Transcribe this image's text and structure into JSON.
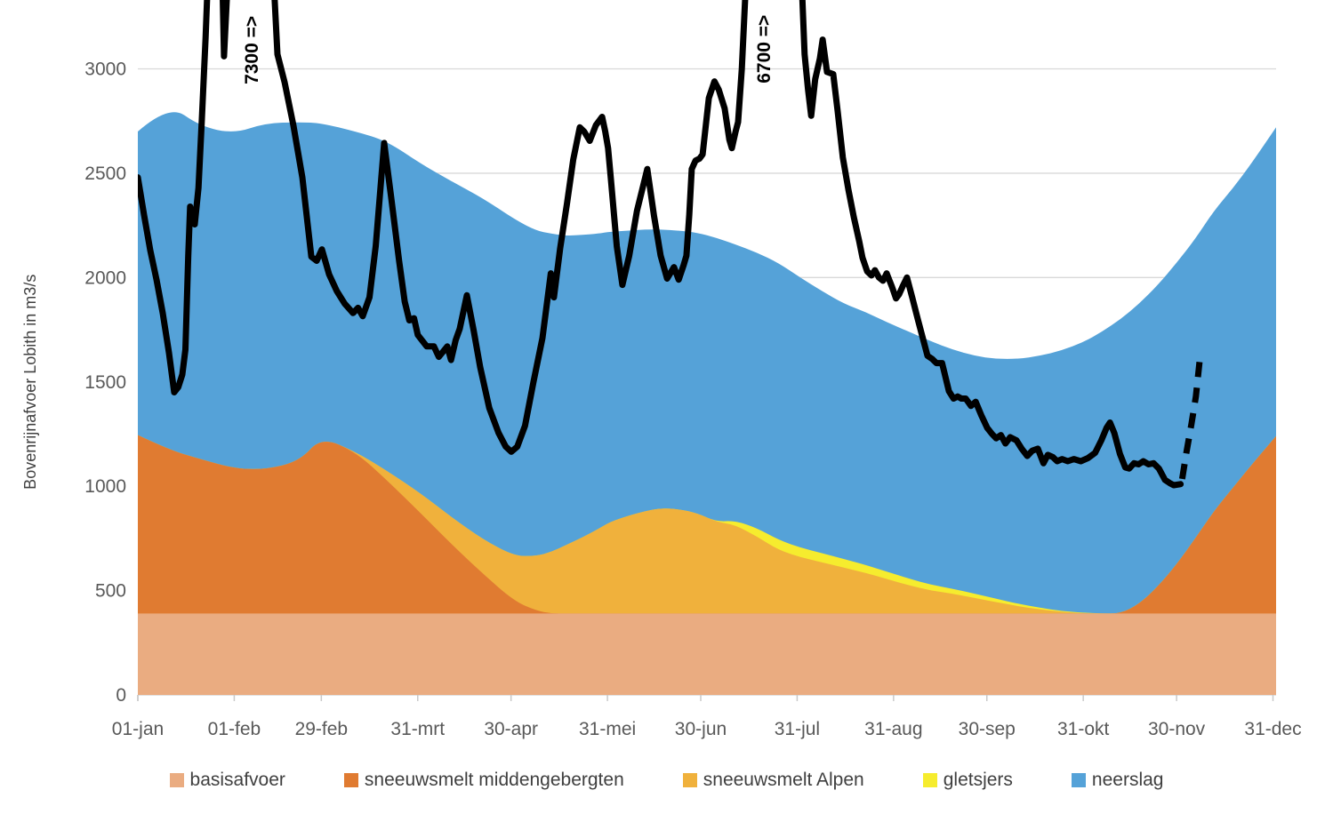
{
  "chart_data": {
    "type": "area",
    "title": "",
    "ylabel": "Bovenrijnafvoer Lobith in m3/s",
    "grid": "horizontal",
    "y_ticks": [
      0,
      500,
      1000,
      1500,
      2000,
      2500,
      3000
    ],
    "y_max_visible": 3330,
    "x_tick_labels": [
      {
        "label": "01-jan",
        "day": 0
      },
      {
        "label": "01-feb",
        "day": 31
      },
      {
        "label": "29-feb",
        "day": 59
      },
      {
        "label": "31-mrt",
        "day": 90
      },
      {
        "label": "30-apr",
        "day": 120
      },
      {
        "label": "31-mei",
        "day": 151
      },
      {
        "label": "30-jun",
        "day": 181
      },
      {
        "label": "31-jul",
        "day": 212
      },
      {
        "label": "31-aug",
        "day": 243
      },
      {
        "label": "30-sep",
        "day": 273
      },
      {
        "label": "31-okt",
        "day": 304
      },
      {
        "label": "30-nov",
        "day": 334
      },
      {
        "label": "31-dec",
        "day": 365
      }
    ],
    "days": [
      0,
      10,
      20,
      31,
      41,
      52,
      59,
      70,
      80,
      91,
      101,
      111,
      121,
      128,
      133,
      138,
      143,
      148,
      152,
      158,
      163,
      168,
      174,
      180,
      186,
      192,
      199,
      206,
      213,
      220,
      227,
      234,
      241,
      248,
      255,
      262,
      269,
      276,
      283,
      290,
      297,
      304,
      310,
      316,
      322,
      328,
      334,
      340,
      346,
      352,
      358,
      366
    ],
    "stacked_series": [
      {
        "name": "basisafvoer",
        "color": "#EAAC81",
        "constant": 390
      },
      {
        "name": "sneeuwsmelt middengebergten",
        "color": "#E07B31",
        "values": [
          855,
          785,
          740,
          695,
          690,
          730,
          845,
          775,
          640,
          480,
          330,
          190,
          60,
          15,
          0,
          0,
          0,
          0,
          0,
          0,
          0,
          0,
          0,
          0,
          0,
          0,
          0,
          0,
          0,
          0,
          0,
          0,
          0,
          0,
          0,
          0,
          0,
          0,
          0,
          0,
          0,
          0,
          0,
          0,
          45,
          130,
          235,
          360,
          490,
          600,
          710,
          850
        ]
      },
      {
        "name": "sneeuwsmelt Alpen",
        "color": "#F0B13C",
        "values": [
          0,
          0,
          0,
          0,
          0,
          0,
          0,
          0,
          45,
          95,
          130,
          165,
          215,
          260,
          295,
          330,
          365,
          405,
          440,
          470,
          490,
          505,
          500,
          480,
          440,
          425,
          370,
          305,
          270,
          245,
          220,
          195,
          165,
          135,
          110,
          95,
          75,
          55,
          35,
          20,
          8,
          2,
          0,
          0,
          0,
          0,
          0,
          0,
          0,
          0,
          0,
          0
        ]
      },
      {
        "name": "gletsjers",
        "color": "#F6EC2E",
        "values": [
          0,
          0,
          0,
          0,
          0,
          0,
          0,
          0,
          0,
          0,
          0,
          0,
          0,
          0,
          0,
          0,
          0,
          0,
          0,
          0,
          0,
          0,
          0,
          0,
          0,
          20,
          40,
          48,
          46,
          44,
          41,
          38,
          35,
          32,
          28,
          24,
          20,
          16,
          12,
          8,
          4,
          2,
          0,
          0,
          0,
          0,
          0,
          0,
          0,
          0,
          0,
          0
        ]
      },
      {
        "name": "neerslag",
        "color": "#55A2D8",
        "values": [
          1455,
          1655,
          1595,
          1605,
          1660,
          1625,
          1505,
          1535,
          1580,
          1580,
          1610,
          1635,
          1615,
          1560,
          1525,
          1480,
          1450,
          1415,
          1390,
          1365,
          1350,
          1335,
          1335,
          1345,
          1360,
          1325,
          1320,
          1327,
          1294,
          1256,
          1224,
          1212,
          1195,
          1183,
          1167,
          1146,
          1140,
          1149,
          1173,
          1207,
          1248,
          1296,
          1350,
          1410,
          1440,
          1445,
          1445,
          1435,
          1440,
          1435,
          1445,
          1480
        ]
      }
    ],
    "observed_line": {
      "name": "afvoer Lobith",
      "color": "#000000",
      "points": [
        [
          0,
          2480
        ],
        [
          2,
          2300
        ],
        [
          4,
          2130
        ],
        [
          6,
          1990
        ],
        [
          8,
          1830
        ],
        [
          10,
          1640
        ],
        [
          11.7,
          1450
        ],
        [
          13,
          1475
        ],
        [
          14.3,
          1535
        ],
        [
          15.3,
          1655
        ],
        [
          16.2,
          2105
        ],
        [
          16.8,
          2340
        ],
        [
          18.3,
          2255
        ],
        [
          19.5,
          2430
        ],
        [
          20.6,
          2760
        ],
        [
          21.8,
          3150
        ],
        [
          23,
          3620
        ],
        [
          26.9,
          3620
        ],
        [
          27.7,
          3060
        ],
        [
          28.6,
          3330
        ],
        [
          29.6,
          3620
        ],
        [
          43,
          3620
        ],
        [
          44.9,
          3070
        ],
        [
          47.2,
          2935
        ],
        [
          50,
          2730
        ],
        [
          52.9,
          2480
        ],
        [
          55.8,
          2100
        ],
        [
          57.5,
          2080
        ],
        [
          59.2,
          2135
        ],
        [
          61.5,
          2015
        ],
        [
          64,
          1935
        ],
        [
          66.5,
          1875
        ],
        [
          69.2,
          1830
        ],
        [
          70.8,
          1855
        ],
        [
          72.3,
          1815
        ],
        [
          74.5,
          1905
        ],
        [
          76.5,
          2150
        ],
        [
          79.2,
          2645
        ],
        [
          81.5,
          2380
        ],
        [
          84,
          2080
        ],
        [
          85.8,
          1885
        ],
        [
          87.3,
          1795
        ],
        [
          88.8,
          1805
        ],
        [
          90,
          1725
        ],
        [
          92.9,
          1670
        ],
        [
          95.2,
          1670
        ],
        [
          96.8,
          1620
        ],
        [
          99.5,
          1670
        ],
        [
          100.7,
          1605
        ],
        [
          102.2,
          1700
        ],
        [
          103.5,
          1755
        ],
        [
          105.8,
          1915
        ],
        [
          108,
          1745
        ],
        [
          110.1,
          1570
        ],
        [
          113,
          1375
        ],
        [
          116,
          1255
        ],
        [
          118.3,
          1190
        ],
        [
          120.1,
          1165
        ],
        [
          122,
          1190
        ],
        [
          124.5,
          1290
        ],
        [
          127.2,
          1500
        ],
        [
          130.1,
          1710
        ],
        [
          132.8,
          2020
        ],
        [
          133.8,
          1905
        ],
        [
          135.8,
          2140
        ],
        [
          138,
          2355
        ],
        [
          140,
          2565
        ],
        [
          142.1,
          2720
        ],
        [
          143.5,
          2700
        ],
        [
          145.3,
          2655
        ],
        [
          147.3,
          2730
        ],
        [
          149.3,
          2770
        ],
        [
          150.3,
          2700
        ],
        [
          151.2,
          2620
        ],
        [
          152.1,
          2475
        ],
        [
          154,
          2150
        ],
        [
          155.8,
          1965
        ],
        [
          158,
          2105
        ],
        [
          160.5,
          2320
        ],
        [
          163.8,
          2520
        ],
        [
          166,
          2295
        ],
        [
          168.1,
          2105
        ],
        [
          170.2,
          1995
        ],
        [
          172.4,
          2050
        ],
        [
          173.9,
          1990
        ],
        [
          175.5,
          2060
        ],
        [
          176.4,
          2105
        ],
        [
          177.3,
          2300
        ],
        [
          178.1,
          2520
        ],
        [
          179.3,
          2560
        ],
        [
          180.6,
          2570
        ],
        [
          181.6,
          2590
        ],
        [
          183.6,
          2860
        ],
        [
          185.4,
          2940
        ],
        [
          186.8,
          2900
        ],
        [
          188.7,
          2810
        ],
        [
          190.2,
          2660
        ],
        [
          191,
          2620
        ],
        [
          192.2,
          2700
        ],
        [
          193,
          2745
        ],
        [
          194.2,
          3000
        ],
        [
          195.3,
          3340
        ],
        [
          196.5,
          3620
        ],
        [
          212.9,
          3620
        ],
        [
          214.4,
          3070
        ],
        [
          215.5,
          2900
        ],
        [
          216.5,
          2775
        ],
        [
          217.8,
          2950
        ],
        [
          219.3,
          3050
        ],
        [
          220.2,
          3140
        ],
        [
          221.6,
          2985
        ],
        [
          222.6,
          2980
        ],
        [
          223.6,
          2975
        ],
        [
          225,
          2800
        ],
        [
          226.7,
          2575
        ],
        [
          228.5,
          2420
        ],
        [
          230.2,
          2290
        ],
        [
          232,
          2170
        ],
        [
          233,
          2095
        ],
        [
          234.5,
          2030
        ],
        [
          235.9,
          2010
        ],
        [
          237,
          2035
        ],
        [
          238.3,
          2000
        ],
        [
          239.6,
          1985
        ],
        [
          240.8,
          2020
        ],
        [
          242.5,
          1955
        ],
        [
          243.8,
          1900
        ],
        [
          244.8,
          1920
        ],
        [
          246,
          1960
        ],
        [
          247.3,
          2000
        ],
        [
          249,
          1905
        ],
        [
          250.8,
          1800
        ],
        [
          252.3,
          1715
        ],
        [
          253.9,
          1625
        ],
        [
          255.4,
          1610
        ],
        [
          256.8,
          1590
        ],
        [
          258.6,
          1590
        ],
        [
          260.8,
          1455
        ],
        [
          262.3,
          1420
        ],
        [
          263.6,
          1430
        ],
        [
          264.8,
          1420
        ],
        [
          266.2,
          1420
        ],
        [
          267.9,
          1385
        ],
        [
          269.4,
          1405
        ],
        [
          271.2,
          1340
        ],
        [
          273.1,
          1280
        ],
        [
          274.7,
          1250
        ],
        [
          276,
          1230
        ],
        [
          277.5,
          1245
        ],
        [
          279,
          1205
        ],
        [
          280.5,
          1235
        ],
        [
          282.5,
          1220
        ],
        [
          284.2,
          1180
        ],
        [
          286,
          1145
        ],
        [
          287.6,
          1170
        ],
        [
          289.4,
          1180
        ],
        [
          291.2,
          1110
        ],
        [
          292.6,
          1150
        ],
        [
          294.2,
          1140
        ],
        [
          295.6,
          1120
        ],
        [
          297.2,
          1130
        ],
        [
          299,
          1120
        ],
        [
          301,
          1130
        ],
        [
          303.2,
          1120
        ],
        [
          305.5,
          1135
        ],
        [
          307.8,
          1160
        ],
        [
          309.8,
          1220
        ],
        [
          311.5,
          1280
        ],
        [
          312.6,
          1305
        ],
        [
          314,
          1255
        ],
        [
          315.8,
          1155
        ],
        [
          317.5,
          1090
        ],
        [
          318.8,
          1085
        ],
        [
          320.3,
          1110
        ],
        [
          321.8,
          1105
        ],
        [
          323.3,
          1120
        ],
        [
          325,
          1105
        ],
        [
          326.6,
          1110
        ],
        [
          328.3,
          1085
        ],
        [
          330.3,
          1030
        ],
        [
          331.8,
          1015
        ],
        [
          333.1,
          1005
        ],
        [
          335.3,
          1010
        ]
      ]
    },
    "forecast_line": {
      "style": "dashed",
      "color": "#000000",
      "points": [
        [
          335.8,
          1035
        ],
        [
          337.2,
          1165
        ],
        [
          338.8,
          1300
        ],
        [
          340.2,
          1430
        ],
        [
          341.4,
          1600
        ]
      ]
    },
    "annotations": [
      {
        "text": "7300 =>",
        "day": 38.6,
        "value": 3090
      },
      {
        "text": "6700 =>",
        "day": 203.3,
        "value": 3095
      }
    ],
    "legend": [
      {
        "label": "basisafvoer",
        "color": "#EAAC81"
      },
      {
        "label": "sneeuwsmelt middengebergten",
        "color": "#E07B31"
      },
      {
        "label": "sneeuwsmelt Alpen",
        "color": "#F0B13C"
      },
      {
        "label": "gletsjers",
        "color": "#F6EC2E"
      },
      {
        "label": "neerslag",
        "color": "#55A2D8"
      }
    ],
    "colors": {
      "gridline": "#D8D8D8",
      "axis_text": "#595959",
      "tick_mark": "#C9C9C9",
      "annotation_text": "#000000"
    }
  }
}
